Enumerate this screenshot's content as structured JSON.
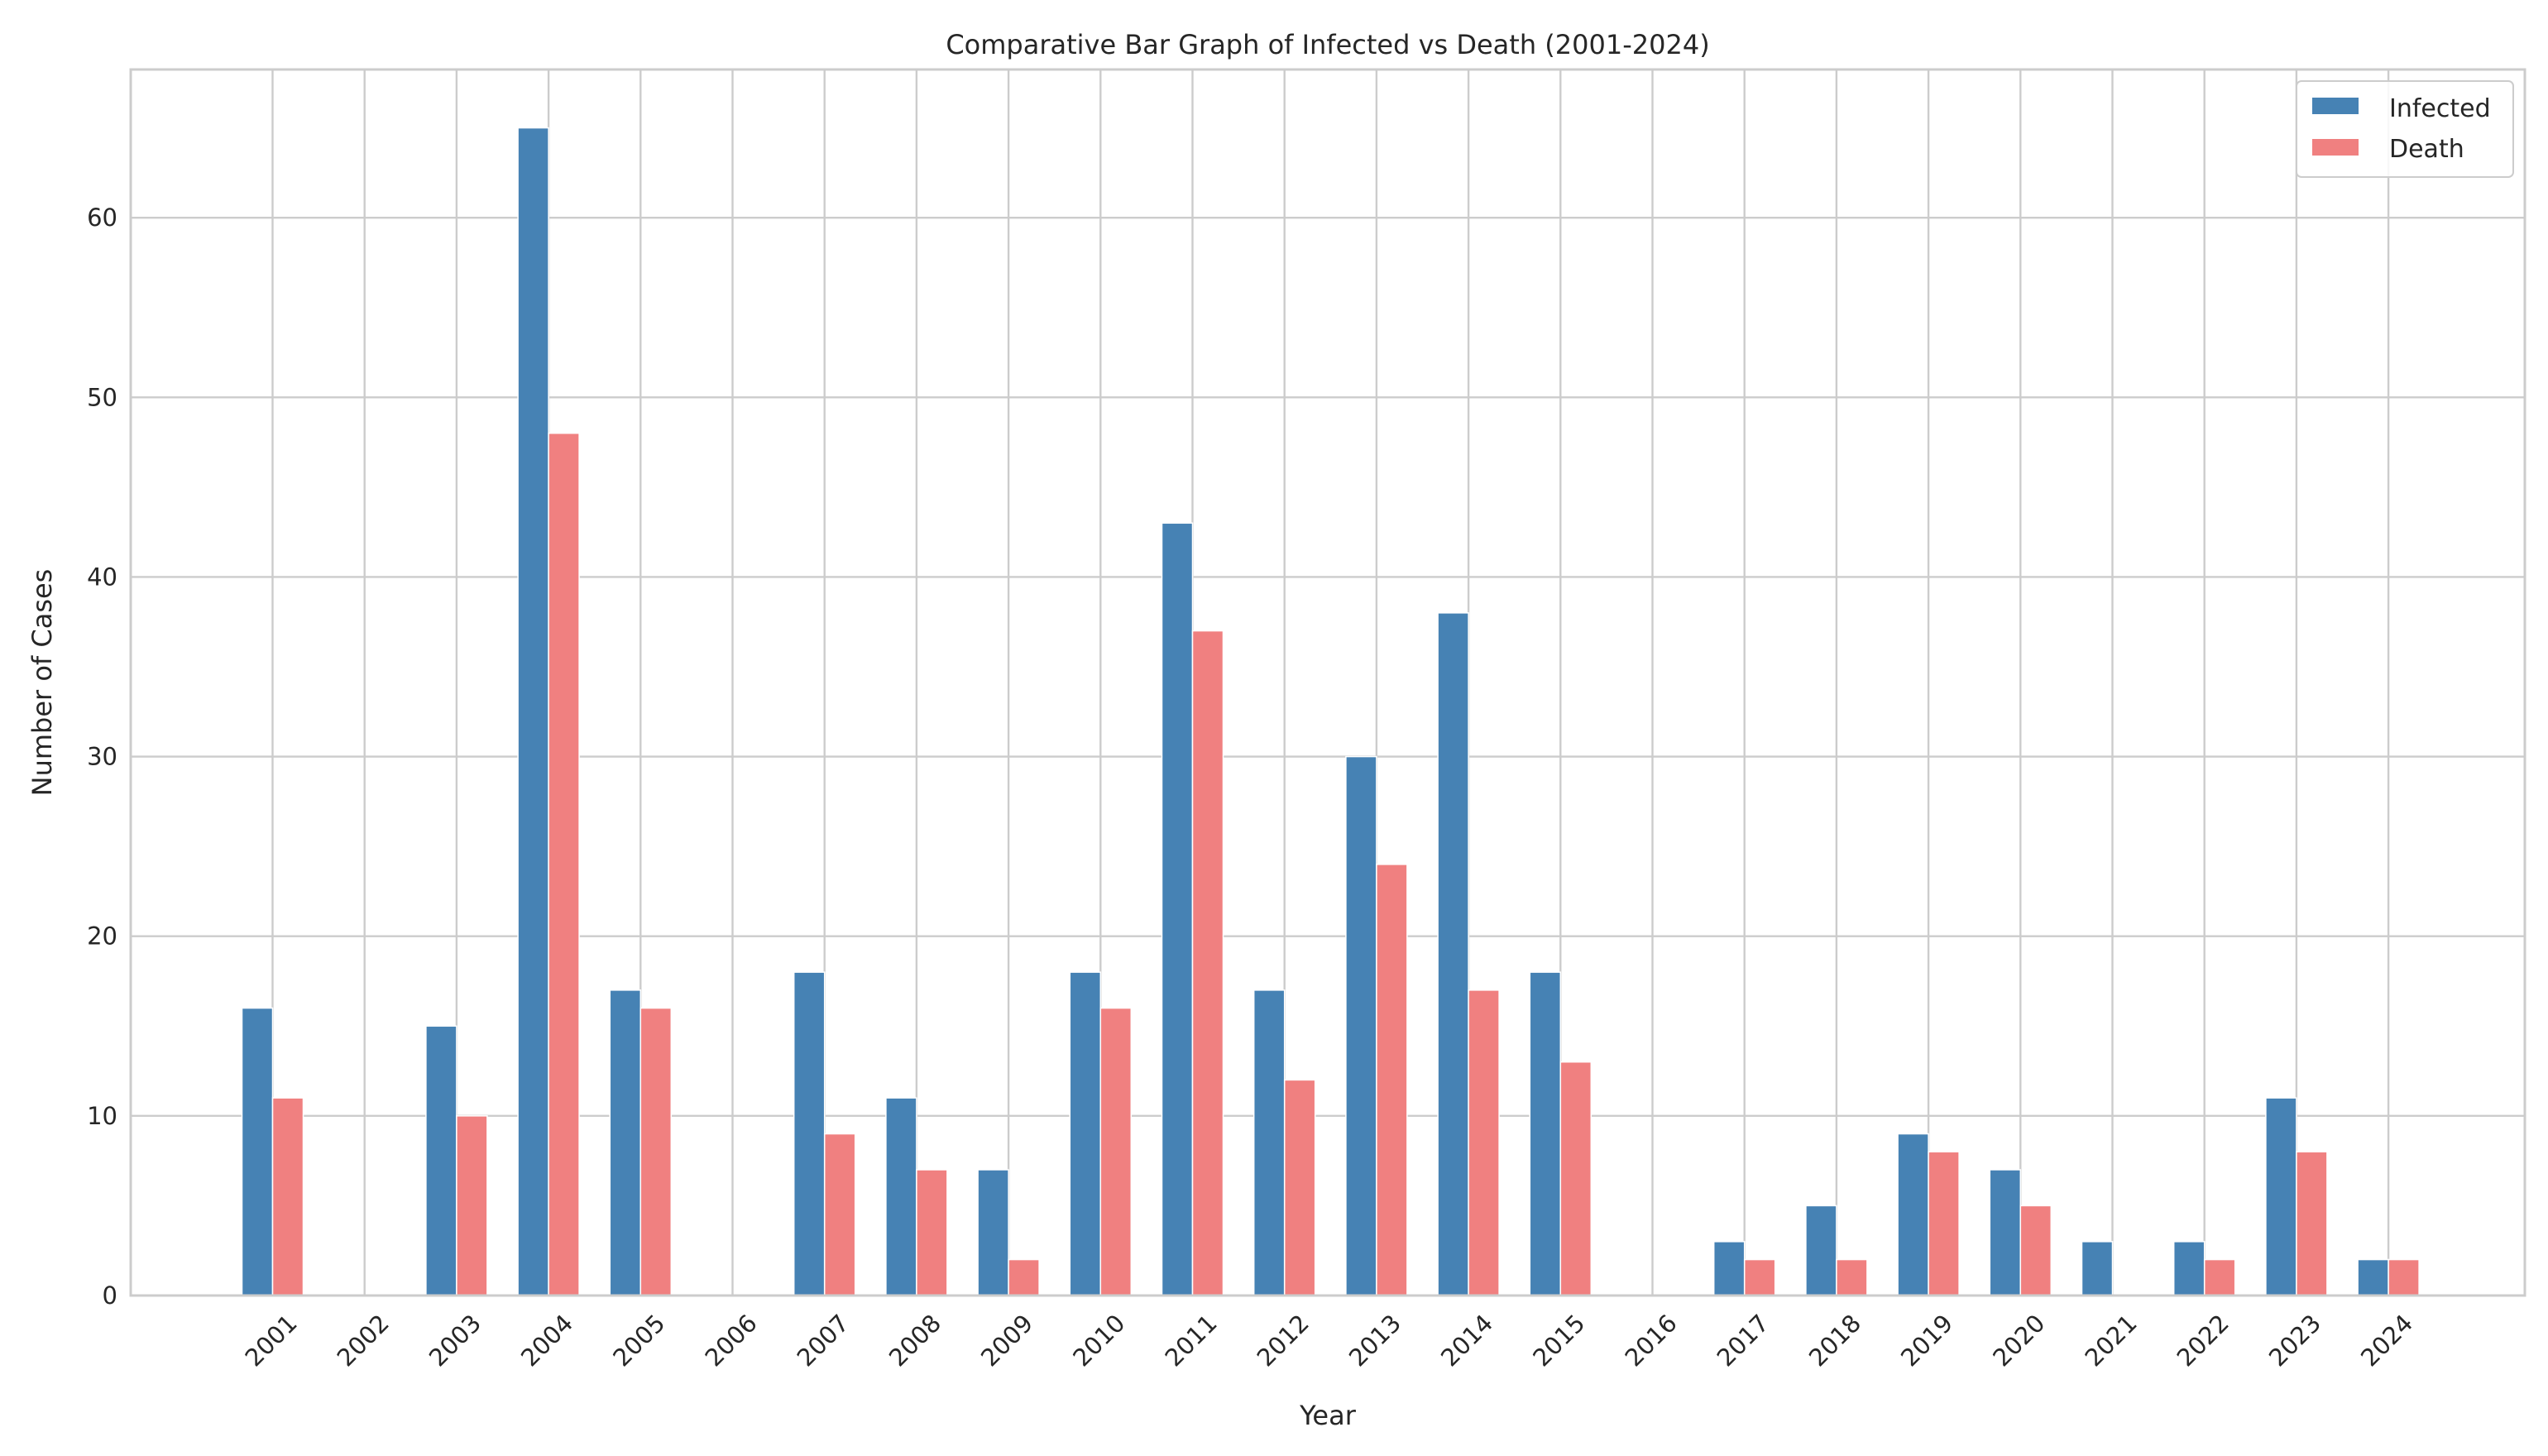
{
  "chart_data": {
    "type": "bar",
    "title": "Comparative Bar Graph of Infected vs Death (2001-2024)",
    "xlabel": "Year",
    "ylabel": "Number of Cases",
    "categories": [
      "2001",
      "2002",
      "2003",
      "2004",
      "2005",
      "2006",
      "2007",
      "2008",
      "2009",
      "2010",
      "2011",
      "2012",
      "2013",
      "2014",
      "2015",
      "2016",
      "2017",
      "2018",
      "2019",
      "2020",
      "2021",
      "2022",
      "2023",
      "2024"
    ],
    "series": [
      {
        "name": "Infected",
        "color": "#4682b4",
        "values": [
          16,
          0,
          15,
          65,
          17,
          0,
          18,
          11,
          7,
          18,
          43,
          17,
          30,
          38,
          18,
          0,
          3,
          5,
          9,
          7,
          3,
          3,
          11,
          2
        ]
      },
      {
        "name": "Death",
        "color": "#f08080",
        "values": [
          11,
          0,
          10,
          48,
          16,
          0,
          9,
          7,
          2,
          16,
          37,
          12,
          24,
          17,
          13,
          0,
          2,
          2,
          8,
          5,
          0,
          2,
          8,
          2
        ]
      }
    ],
    "ylim": [
      0,
      68.25
    ],
    "yticks": [
      0,
      10,
      20,
      30,
      40,
      50,
      60
    ],
    "grid": true,
    "legend_position": "top-right"
  }
}
